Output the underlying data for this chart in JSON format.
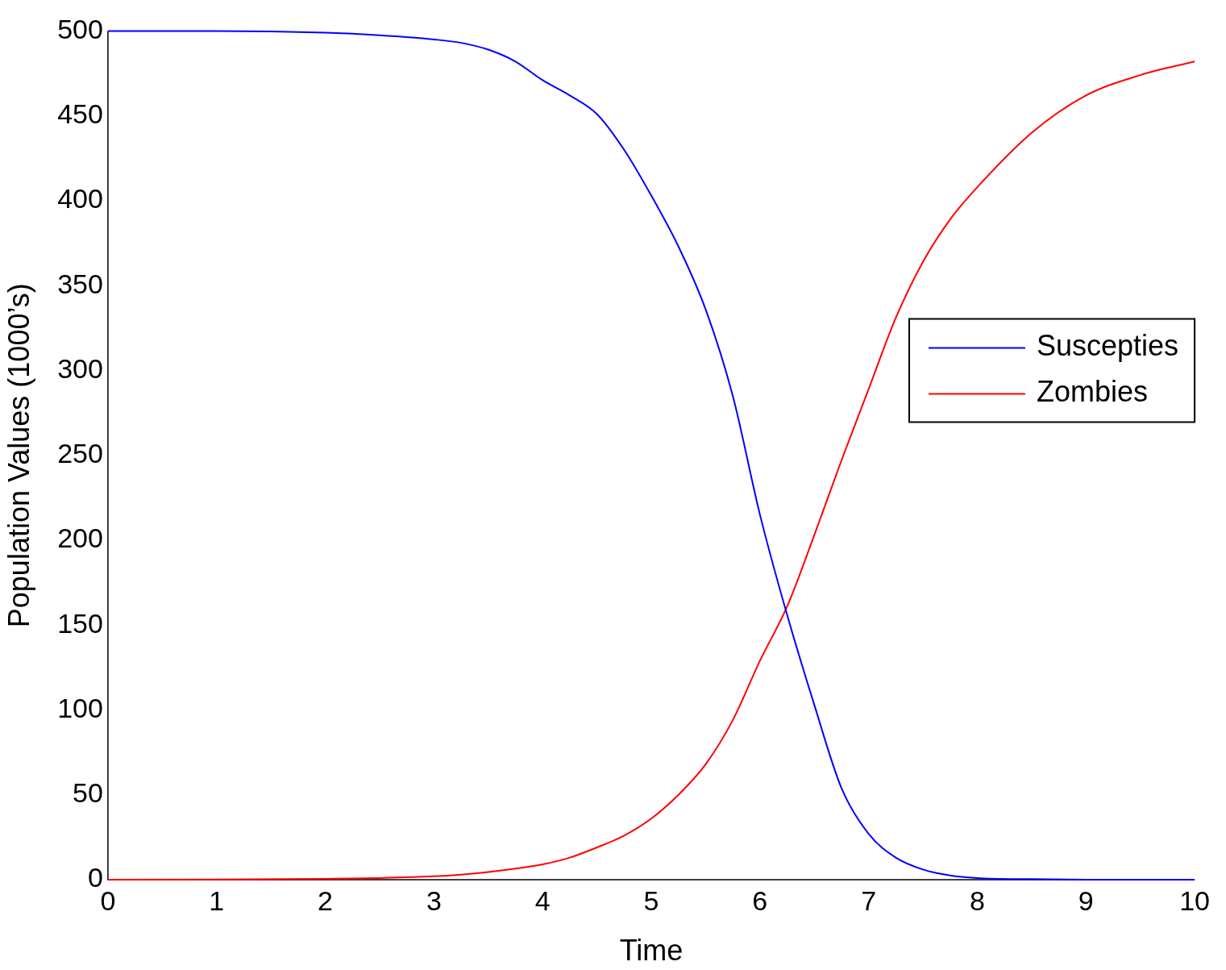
{
  "chart_data": {
    "type": "line",
    "xlabel": "Time",
    "ylabel": "Population Values (1000’s)",
    "x": [
      0,
      1,
      2,
      2.5,
      3,
      3.25,
      3.5,
      3.75,
      4,
      4.25,
      4.5,
      4.75,
      5,
      5.25,
      5.5,
      5.75,
      6,
      6.25,
      6.5,
      6.75,
      7,
      7.25,
      7.5,
      7.75,
      8,
      8.5,
      9,
      9.5,
      10
    ],
    "series": [
      {
        "name": "Suscepties",
        "color": "#0000ff",
        "values": [
          500,
          500,
          499,
          497.5,
          495,
          493,
          489,
          482,
          471,
          462,
          451,
          430,
          403,
          373,
          336,
          285,
          215,
          156,
          103,
          54,
          27,
          13,
          6,
          2.5,
          1,
          0.3,
          0,
          0,
          0
        ]
      },
      {
        "name": "Zombies",
        "color": "#ff0000",
        "values": [
          0,
          0.1,
          0.5,
          1,
          2,
          3,
          4.5,
          6.5,
          9,
          13,
          19,
          26,
          36,
          50,
          68,
          94,
          129,
          161,
          203,
          247,
          289,
          331,
          364,
          389,
          408,
          440,
          462,
          474,
          482
        ]
      }
    ],
    "xlim": [
      0,
      10
    ],
    "xticks": [
      0,
      1,
      2,
      3,
      4,
      5,
      6,
      7,
      8,
      9,
      10
    ],
    "ylim": [
      0,
      500
    ],
    "yticks": [
      0,
      50,
      100,
      150,
      200,
      250,
      300,
      350,
      400,
      450,
      500
    ],
    "grid": false,
    "legend": "right",
    "marker": "none",
    "line_style": "solid"
  }
}
